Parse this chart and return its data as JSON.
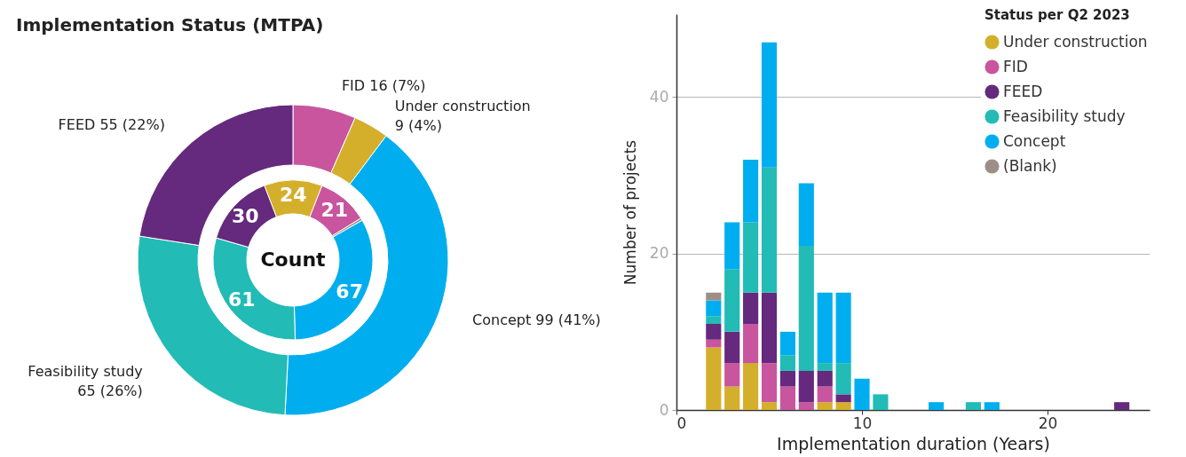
{
  "chart_data": [
    {
      "type": "donut",
      "title": "Implementation Status (MTPA)",
      "categories": [
        "FID",
        "Under construction",
        "Concept",
        "Feasibility study",
        "FEED"
      ],
      "values": [
        16,
        9,
        99,
        65,
        55
      ],
      "colors": [
        "#c8559e",
        "#d4af2c",
        "#00aeef",
        "#22bbb5",
        "#65297d"
      ],
      "value_labels": [
        "16 (7%)",
        "9 (4%)",
        "99 (41%)",
        "65 (26%)",
        "55 (22%)"
      ]
    },
    {
      "type": "donut",
      "title": "Count",
      "categories": [
        null,
        null,
        null,
        null,
        null,
        null
      ],
      "values": [
        24,
        21,
        1,
        67,
        61,
        30
      ],
      "colors": [
        "#d4af2c",
        "#c8559e",
        "#9b8f88",
        "#00aeef",
        "#22bbb5",
        "#65297d"
      ],
      "value_labels": [
        "24",
        "21",
        null,
        "67",
        "61",
        "30"
      ]
    },
    {
      "type": "bar",
      "stacked": true,
      "xlabel": "Implementation duration (Years)",
      "ylabel": "Number of projects",
      "legend_title": "Status per Q2 2023",
      "legend": "top right",
      "grid": "y",
      "x": [
        2,
        3,
        4,
        5,
        6,
        7,
        8,
        9,
        10,
        11,
        14,
        16,
        17,
        24
      ],
      "xlim": [
        0,
        25.5
      ],
      "xticks": [
        0,
        10,
        20
      ],
      "ylim": [
        0,
        50.6
      ],
      "yticks": [
        0,
        20,
        40
      ],
      "series": [
        {
          "name": "Under construction",
          "color": "#d4af2c",
          "values": [
            8,
            3,
            6,
            1,
            null,
            null,
            1,
            1,
            null,
            null,
            null,
            null,
            null,
            null
          ]
        },
        {
          "name": "FID",
          "color": "#c8559e",
          "values": [
            1,
            3,
            5,
            5,
            3,
            1,
            2,
            null,
            null,
            null,
            null,
            null,
            null,
            null
          ]
        },
        {
          "name": "FEED",
          "color": "#65297d",
          "values": [
            2,
            4,
            4,
            9,
            2,
            4,
            2,
            1,
            null,
            null,
            null,
            null,
            null,
            1
          ]
        },
        {
          "name": "Feasibility study",
          "color": "#22bbb5",
          "values": [
            1,
            8,
            9,
            16,
            2,
            16,
            1,
            4,
            null,
            2,
            null,
            1,
            null,
            null
          ]
        },
        {
          "name": "Concept",
          "color": "#00aeef",
          "values": [
            2,
            6,
            8,
            16,
            3,
            8,
            9,
            9,
            4,
            null,
            1,
            null,
            1,
            null
          ]
        },
        {
          "name": "(Blank)",
          "color": "#9b8f88",
          "values": [
            1,
            null,
            null,
            null,
            null,
            null,
            null,
            null,
            null,
            null,
            null,
            null,
            null,
            null
          ]
        }
      ]
    }
  ]
}
